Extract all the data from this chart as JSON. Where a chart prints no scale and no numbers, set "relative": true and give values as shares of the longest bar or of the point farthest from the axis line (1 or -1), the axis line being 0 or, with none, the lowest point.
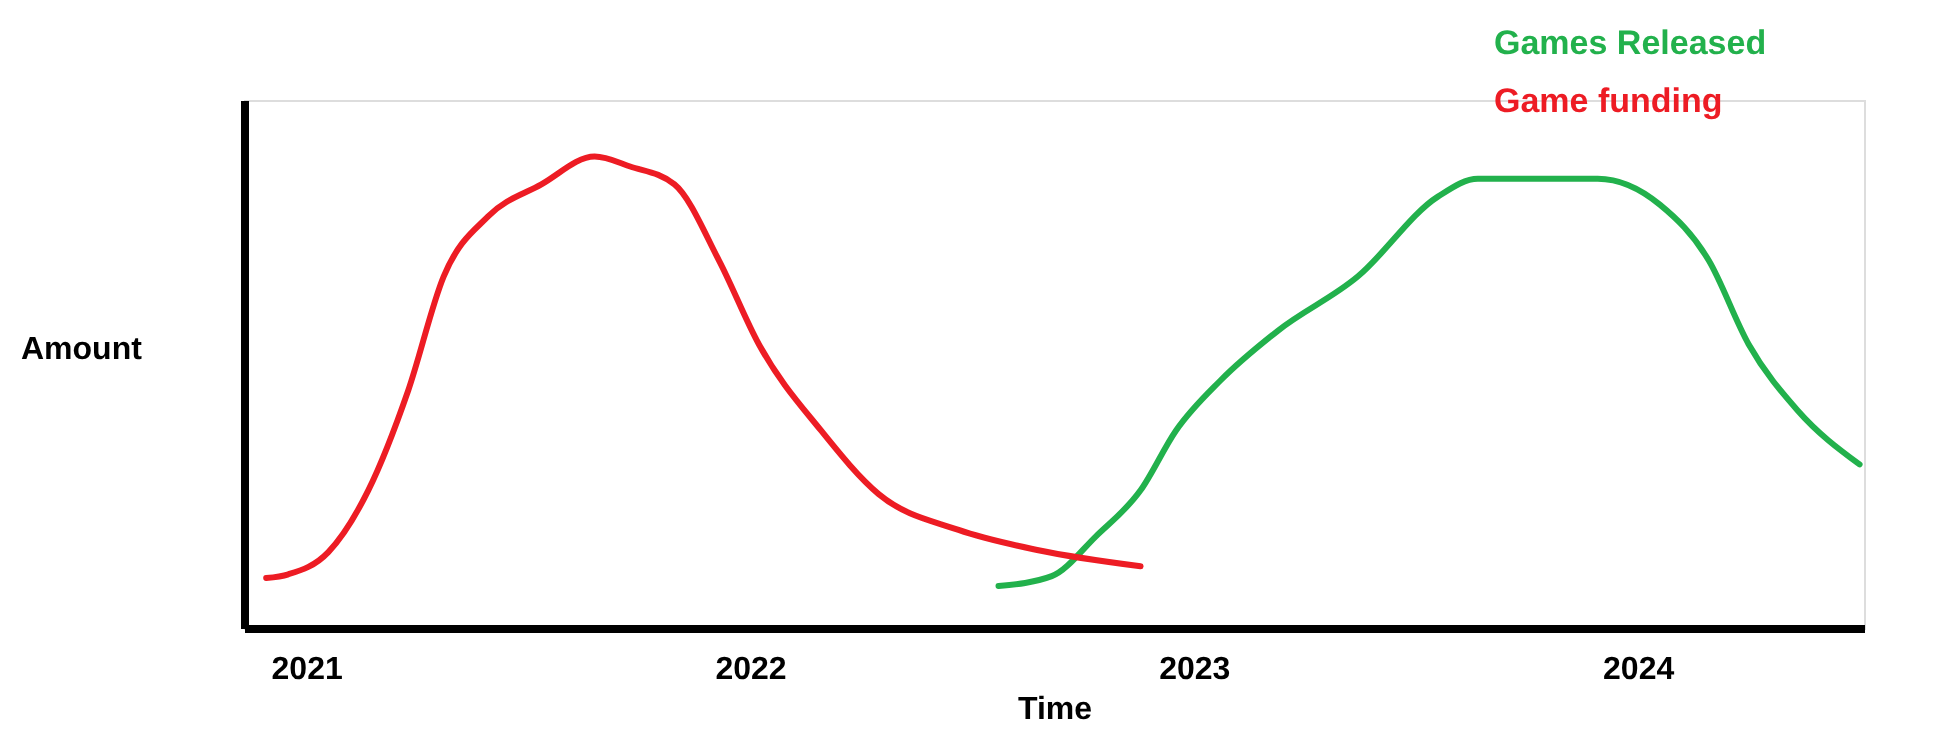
{
  "chart_data": {
    "type": "line",
    "xlabel": "Time",
    "ylabel": "Amount",
    "relative": true,
    "legend": "top right",
    "tick_labels": "x",
    "xlim": [
      2020.86,
      2024.51
    ],
    "xticks": [
      2021,
      2022,
      2023,
      2024
    ],
    "series": [
      {
        "name": "Games Released",
        "color": "#22b14c",
        "x": [
          2022.56,
          2022.68,
          2022.78,
          2022.88,
          2022.96,
          2023.06,
          2023.19,
          2023.37,
          2023.55,
          2023.64,
          2023.91,
          2024.05,
          2024.16,
          2024.25,
          2024.36,
          2024.5
        ],
        "values": [
          0.089,
          0.11,
          0.195,
          0.292,
          0.419,
          0.525,
          0.631,
          0.746,
          0.915,
          0.953,
          0.953,
          0.898,
          0.78,
          0.602,
          0.462,
          0.347
        ]
      },
      {
        "name": "Game funding",
        "color": "#ed1c24",
        "x": [
          2020.91,
          2020.96,
          2021.05,
          2021.14,
          2021.23,
          2021.31,
          2021.41,
          2021.53,
          2021.65,
          2021.73,
          2021.83,
          2021.93,
          2022.02,
          2022.16,
          2022.29,
          2022.47,
          2022.65,
          2022.88
        ],
        "values": [
          0.106,
          0.114,
          0.161,
          0.292,
          0.504,
          0.746,
          0.873,
          0.941,
          1.0,
          0.979,
          0.941,
          0.78,
          0.602,
          0.419,
          0.284,
          0.208,
          0.165,
          0.131
        ]
      }
    ]
  }
}
